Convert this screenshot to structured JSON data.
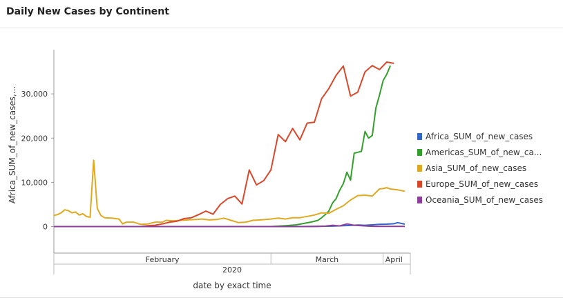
{
  "header": {
    "title": "Daily New Cases by Continent"
  },
  "chart_data": {
    "type": "line",
    "ylabel": "Africa_SUM_of_new_cases,...",
    "xlabel": "date by exact time",
    "ylim": [
      -6000,
      40000
    ],
    "yticks": [
      {
        "value": 0,
        "label": "0"
      },
      {
        "value": 10000,
        "label": "10,000"
      },
      {
        "value": 20000,
        "label": "20,000"
      },
      {
        "value": 30000,
        "label": "30,000"
      }
    ],
    "x_range": [
      "2020-01-01",
      "2020-04-07"
    ],
    "x_months": [
      {
        "label": "February",
        "start": "2020-01-01",
        "end": "2020-03-01"
      },
      {
        "label": "March",
        "start": "2020-03-01",
        "end": "2020-04-01"
      },
      {
        "label": "April",
        "start": "2020-04-01",
        "end": "2020-04-07"
      }
    ],
    "x_year": {
      "label": "2020",
      "start": "2020-01-01",
      "end": "2020-04-07"
    },
    "legend_position": "right",
    "series": [
      {
        "name": "Africa_SUM_of_new_cases",
        "color": "#3366cc",
        "points": [
          [
            "2020-01-01",
            0
          ],
          [
            "2020-03-05",
            0
          ],
          [
            "2020-03-12",
            20
          ],
          [
            "2020-03-15",
            60
          ],
          [
            "2020-03-18",
            100
          ],
          [
            "2020-03-21",
            200
          ],
          [
            "2020-03-23",
            250
          ],
          [
            "2020-03-25",
            350
          ],
          [
            "2020-03-27",
            300
          ],
          [
            "2020-03-29",
            400
          ],
          [
            "2020-03-31",
            500
          ],
          [
            "2020-04-02",
            550
          ],
          [
            "2020-04-04",
            650
          ],
          [
            "2020-04-05",
            900
          ],
          [
            "2020-04-07",
            550
          ]
        ]
      },
      {
        "name": "Americas_SUM_of_new_cases",
        "color": "#33a02c",
        "points": [
          [
            "2020-01-01",
            0
          ],
          [
            "2020-03-01",
            0
          ],
          [
            "2020-03-05",
            200
          ],
          [
            "2020-03-08",
            400
          ],
          [
            "2020-03-10",
            700
          ],
          [
            "2020-03-12",
            1000
          ],
          [
            "2020-03-14",
            1400
          ],
          [
            "2020-03-15",
            2000
          ],
          [
            "2020-03-16",
            2700
          ],
          [
            "2020-03-17",
            3500
          ],
          [
            "2020-03-18",
            5300
          ],
          [
            "2020-03-19",
            6300
          ],
          [
            "2020-03-20",
            8200
          ],
          [
            "2020-03-21",
            9700
          ],
          [
            "2020-03-22",
            12300
          ],
          [
            "2020-03-23",
            10500
          ],
          [
            "2020-03-24",
            16600
          ],
          [
            "2020-03-25",
            16800
          ],
          [
            "2020-03-26",
            17000
          ],
          [
            "2020-03-27",
            21500
          ],
          [
            "2020-03-28",
            20000
          ],
          [
            "2020-03-29",
            20600
          ],
          [
            "2020-03-30",
            26800
          ],
          [
            "2020-03-31",
            29700
          ],
          [
            "2020-04-01",
            33000
          ],
          [
            "2020-04-02",
            34400
          ],
          [
            "2020-04-03",
            36400
          ]
        ]
      },
      {
        "name": "Asia_SUM_of_new_cases",
        "color": "#e0a81f",
        "points": [
          [
            "2020-01-01",
            2500
          ],
          [
            "2020-01-02",
            2700
          ],
          [
            "2020-01-03",
            3100
          ],
          [
            "2020-01-04",
            3800
          ],
          [
            "2020-01-05",
            3600
          ],
          [
            "2020-01-06",
            3100
          ],
          [
            "2020-01-07",
            3300
          ],
          [
            "2020-01-08",
            2600
          ],
          [
            "2020-01-09",
            2900
          ],
          [
            "2020-01-10",
            2300
          ],
          [
            "2020-01-11",
            2100
          ],
          [
            "2020-01-12",
            15000
          ],
          [
            "2020-01-13",
            4100
          ],
          [
            "2020-01-14",
            2500
          ],
          [
            "2020-01-15",
            2000
          ],
          [
            "2020-01-17",
            1900
          ],
          [
            "2020-01-19",
            1700
          ],
          [
            "2020-01-20",
            600
          ],
          [
            "2020-01-21",
            1000
          ],
          [
            "2020-01-23",
            1000
          ],
          [
            "2020-01-25",
            500
          ],
          [
            "2020-01-27",
            600
          ],
          [
            "2020-01-29",
            1000
          ],
          [
            "2020-01-31",
            1000
          ],
          [
            "2020-02-01",
            1400
          ],
          [
            "2020-02-03",
            1300
          ],
          [
            "2020-02-05",
            1400
          ],
          [
            "2020-02-07",
            1500
          ],
          [
            "2020-02-09",
            1600
          ],
          [
            "2020-02-11",
            1700
          ],
          [
            "2020-02-13",
            1500
          ],
          [
            "2020-02-15",
            1600
          ],
          [
            "2020-02-17",
            1900
          ],
          [
            "2020-02-19",
            1400
          ],
          [
            "2020-02-21",
            900
          ],
          [
            "2020-02-23",
            1000
          ],
          [
            "2020-02-25",
            1400
          ],
          [
            "2020-02-27",
            1500
          ],
          [
            "2020-03-01",
            1700
          ],
          [
            "2020-03-03",
            1900
          ],
          [
            "2020-03-05",
            1700
          ],
          [
            "2020-03-07",
            2000
          ],
          [
            "2020-03-09",
            2000
          ],
          [
            "2020-03-11",
            2300
          ],
          [
            "2020-03-13",
            2600
          ],
          [
            "2020-03-15",
            3100
          ],
          [
            "2020-03-17",
            3000
          ],
          [
            "2020-03-19",
            3900
          ],
          [
            "2020-03-21",
            4700
          ],
          [
            "2020-03-23",
            6000
          ],
          [
            "2020-03-25",
            7000
          ],
          [
            "2020-03-27",
            7100
          ],
          [
            "2020-03-29",
            6900
          ],
          [
            "2020-03-31",
            8500
          ],
          [
            "2020-04-01",
            8600
          ],
          [
            "2020-04-02",
            8800
          ],
          [
            "2020-04-03",
            8500
          ],
          [
            "2020-04-05",
            8300
          ],
          [
            "2020-04-07",
            8000
          ]
        ]
      },
      {
        "name": "Europe_SUM_of_new_cases",
        "color": "#d9472b",
        "points": [
          [
            "2020-01-01",
            0
          ],
          [
            "2020-01-25",
            0
          ],
          [
            "2020-01-27",
            200
          ],
          [
            "2020-01-29",
            300
          ],
          [
            "2020-01-31",
            600
          ],
          [
            "2020-02-02",
            1000
          ],
          [
            "2020-02-04",
            1200
          ],
          [
            "2020-02-06",
            1800
          ],
          [
            "2020-02-08",
            2000
          ],
          [
            "2020-02-10",
            2700
          ],
          [
            "2020-02-12",
            3500
          ],
          [
            "2020-02-14",
            2800
          ],
          [
            "2020-02-16",
            5000
          ],
          [
            "2020-02-18",
            6300
          ],
          [
            "2020-02-20",
            6900
          ],
          [
            "2020-02-22",
            5100
          ],
          [
            "2020-02-24",
            12800
          ],
          [
            "2020-02-26",
            9400
          ],
          [
            "2020-02-28",
            10400
          ],
          [
            "2020-03-01",
            12800
          ],
          [
            "2020-03-03",
            20800
          ],
          [
            "2020-03-05",
            19200
          ],
          [
            "2020-03-07",
            22200
          ],
          [
            "2020-03-09",
            19600
          ],
          [
            "2020-03-11",
            23400
          ],
          [
            "2020-03-13",
            23600
          ],
          [
            "2020-03-15",
            28900
          ],
          [
            "2020-03-17",
            31200
          ],
          [
            "2020-03-19",
            34200
          ],
          [
            "2020-03-21",
            36300
          ],
          [
            "2020-03-23",
            29500
          ],
          [
            "2020-03-25",
            30400
          ],
          [
            "2020-03-27",
            35000
          ],
          [
            "2020-03-29",
            36400
          ],
          [
            "2020-03-31",
            35500
          ],
          [
            "2020-04-02",
            37200
          ],
          [
            "2020-04-04",
            36900
          ]
        ]
      },
      {
        "name": "Oceania_SUM_of_new_cases",
        "color": "#8e3f9e",
        "points": [
          [
            "2020-01-01",
            0
          ],
          [
            "2020-03-10",
            0
          ],
          [
            "2020-03-14",
            50
          ],
          [
            "2020-03-16",
            100
          ],
          [
            "2020-03-18",
            300
          ],
          [
            "2020-03-20",
            150
          ],
          [
            "2020-03-22",
            600
          ],
          [
            "2020-03-24",
            300
          ],
          [
            "2020-03-26",
            200
          ],
          [
            "2020-03-28",
            100
          ],
          [
            "2020-03-30",
            50
          ],
          [
            "2020-04-07",
            50
          ]
        ]
      }
    ],
    "legend": [
      {
        "label": "Africa_SUM_of_new_cases",
        "color": "#3366cc"
      },
      {
        "label": "Americas_SUM_of_new_ca...",
        "color": "#33a02c"
      },
      {
        "label": "Asia_SUM_of_new_cases",
        "color": "#e0a81f"
      },
      {
        "label": "Europe_SUM_of_new_cases",
        "color": "#d9472b"
      },
      {
        "label": "Oceania_SUM_of_new_cases",
        "color": "#8e3f9e"
      }
    ]
  }
}
